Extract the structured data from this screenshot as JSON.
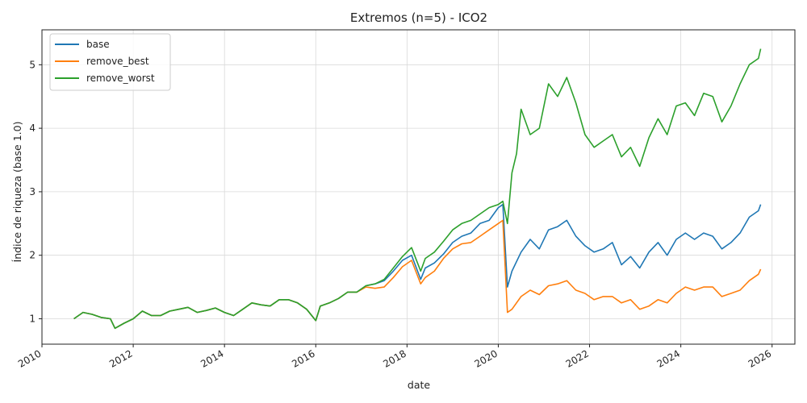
{
  "chart_data": {
    "type": "line",
    "title": "Extremos (n=5) - ICO2",
    "xlabel": "date",
    "ylabel": "Índice de riqueza (base 1.0)",
    "xlim": [
      2010.0,
      2026.5
    ],
    "ylim": [
      0.6,
      5.55
    ],
    "x_ticks": [
      2010,
      2012,
      2014,
      2016,
      2018,
      2020,
      2022,
      2024,
      2026
    ],
    "x_tick_labels": [
      "2010",
      "2012",
      "2014",
      "2016",
      "2018",
      "2020",
      "2022",
      "2024",
      "2026"
    ],
    "y_ticks": [
      1,
      2,
      3,
      4,
      5
    ],
    "y_tick_labels": [
      "1",
      "2",
      "3",
      "4",
      "5"
    ],
    "grid": true,
    "legend_position": "top-left",
    "series": [
      {
        "name": "base",
        "color": "#1f77b4",
        "x": [
          2010.7,
          2010.9,
          2011.1,
          2011.3,
          2011.5,
          2011.6,
          2011.8,
          2012.0,
          2012.2,
          2012.4,
          2012.6,
          2012.8,
          2013.0,
          2013.2,
          2013.4,
          2013.6,
          2013.8,
          2014.0,
          2014.2,
          2014.4,
          2014.6,
          2014.8,
          2015.0,
          2015.2,
          2015.4,
          2015.6,
          2015.8,
          2016.0,
          2016.1,
          2016.3,
          2016.5,
          2016.7,
          2016.9,
          2017.1,
          2017.3,
          2017.5,
          2017.7,
          2017.9,
          2018.1,
          2018.3,
          2018.4,
          2018.6,
          2018.8,
          2019.0,
          2019.2,
          2019.4,
          2019.6,
          2019.8,
          2020.0,
          2020.1,
          2020.2,
          2020.3,
          2020.5,
          2020.7,
          2020.9,
          2021.1,
          2021.3,
          2021.5,
          2021.7,
          2021.9,
          2022.1,
          2022.3,
          2022.5,
          2022.7,
          2022.9,
          2023.1,
          2023.3,
          2023.5,
          2023.7,
          2023.9,
          2024.1,
          2024.3,
          2024.5,
          2024.7,
          2024.9,
          2025.1,
          2025.3,
          2025.5,
          2025.7,
          2025.75
        ],
        "values": [
          1.0,
          1.1,
          1.07,
          1.02,
          1.0,
          0.85,
          0.93,
          1.0,
          1.12,
          1.05,
          1.05,
          1.12,
          1.15,
          1.18,
          1.1,
          1.13,
          1.17,
          1.1,
          1.05,
          1.15,
          1.25,
          1.22,
          1.2,
          1.3,
          1.3,
          1.25,
          1.15,
          0.97,
          1.2,
          1.25,
          1.32,
          1.42,
          1.42,
          1.52,
          1.55,
          1.6,
          1.75,
          1.92,
          2.0,
          1.62,
          1.8,
          1.88,
          2.02,
          2.2,
          2.3,
          2.35,
          2.5,
          2.55,
          2.75,
          2.8,
          1.5,
          1.75,
          2.05,
          2.25,
          2.1,
          2.4,
          2.45,
          2.55,
          2.3,
          2.15,
          2.05,
          2.1,
          2.2,
          1.85,
          1.98,
          1.8,
          2.05,
          2.2,
          2.0,
          2.25,
          2.35,
          2.25,
          2.35,
          2.3,
          2.1,
          2.2,
          2.35,
          2.6,
          2.7,
          2.8
        ]
      },
      {
        "name": "remove_best",
        "color": "#ff7f0e",
        "x": [
          2010.7,
          2010.9,
          2011.1,
          2011.3,
          2011.5,
          2011.6,
          2011.8,
          2012.0,
          2012.2,
          2012.4,
          2012.6,
          2012.8,
          2013.0,
          2013.2,
          2013.4,
          2013.6,
          2013.8,
          2014.0,
          2014.2,
          2014.4,
          2014.6,
          2014.8,
          2015.0,
          2015.2,
          2015.4,
          2015.6,
          2015.8,
          2016.0,
          2016.1,
          2016.3,
          2016.5,
          2016.7,
          2016.9,
          2017.1,
          2017.3,
          2017.5,
          2017.7,
          2017.9,
          2018.1,
          2018.3,
          2018.4,
          2018.6,
          2018.8,
          2019.0,
          2019.2,
          2019.4,
          2019.6,
          2019.8,
          2020.0,
          2020.1,
          2020.2,
          2020.3,
          2020.5,
          2020.7,
          2020.9,
          2021.1,
          2021.3,
          2021.5,
          2021.7,
          2021.9,
          2022.1,
          2022.3,
          2022.5,
          2022.7,
          2022.9,
          2023.1,
          2023.3,
          2023.5,
          2023.7,
          2023.9,
          2024.1,
          2024.3,
          2024.5,
          2024.7,
          2024.9,
          2025.1,
          2025.3,
          2025.5,
          2025.7,
          2025.75
        ],
        "values": [
          1.0,
          1.1,
          1.07,
          1.02,
          1.0,
          0.85,
          0.93,
          1.0,
          1.12,
          1.05,
          1.05,
          1.12,
          1.15,
          1.18,
          1.1,
          1.13,
          1.17,
          1.1,
          1.05,
          1.15,
          1.25,
          1.22,
          1.2,
          1.3,
          1.3,
          1.25,
          1.15,
          0.97,
          1.2,
          1.25,
          1.32,
          1.42,
          1.42,
          1.5,
          1.48,
          1.5,
          1.65,
          1.82,
          1.92,
          1.55,
          1.65,
          1.75,
          1.95,
          2.1,
          2.18,
          2.2,
          2.3,
          2.4,
          2.5,
          2.55,
          1.1,
          1.15,
          1.35,
          1.45,
          1.38,
          1.52,
          1.55,
          1.6,
          1.45,
          1.4,
          1.3,
          1.35,
          1.35,
          1.25,
          1.3,
          1.15,
          1.2,
          1.3,
          1.25,
          1.4,
          1.5,
          1.45,
          1.5,
          1.5,
          1.35,
          1.4,
          1.45,
          1.6,
          1.7,
          1.78
        ]
      },
      {
        "name": "remove_worst",
        "color": "#2ca02c",
        "x": [
          2010.7,
          2010.9,
          2011.1,
          2011.3,
          2011.5,
          2011.6,
          2011.8,
          2012.0,
          2012.2,
          2012.4,
          2012.6,
          2012.8,
          2013.0,
          2013.2,
          2013.4,
          2013.6,
          2013.8,
          2014.0,
          2014.2,
          2014.4,
          2014.6,
          2014.8,
          2015.0,
          2015.2,
          2015.4,
          2015.6,
          2015.8,
          2016.0,
          2016.1,
          2016.3,
          2016.5,
          2016.7,
          2016.9,
          2017.1,
          2017.3,
          2017.5,
          2017.7,
          2017.9,
          2018.1,
          2018.3,
          2018.4,
          2018.6,
          2018.8,
          2019.0,
          2019.2,
          2019.4,
          2019.6,
          2019.8,
          2020.0,
          2020.1,
          2020.2,
          2020.3,
          2020.4,
          2020.5,
          2020.7,
          2020.9,
          2021.1,
          2021.3,
          2021.5,
          2021.7,
          2021.9,
          2022.1,
          2022.3,
          2022.5,
          2022.7,
          2022.9,
          2023.1,
          2023.3,
          2023.5,
          2023.7,
          2023.9,
          2024.1,
          2024.3,
          2024.5,
          2024.7,
          2024.9,
          2025.1,
          2025.3,
          2025.5,
          2025.7,
          2025.75
        ],
        "values": [
          1.0,
          1.1,
          1.07,
          1.02,
          1.0,
          0.85,
          0.93,
          1.0,
          1.12,
          1.05,
          1.05,
          1.12,
          1.15,
          1.18,
          1.1,
          1.13,
          1.17,
          1.1,
          1.05,
          1.15,
          1.25,
          1.22,
          1.2,
          1.3,
          1.3,
          1.25,
          1.15,
          0.97,
          1.2,
          1.25,
          1.32,
          1.42,
          1.42,
          1.52,
          1.55,
          1.62,
          1.8,
          1.98,
          2.12,
          1.75,
          1.95,
          2.05,
          2.22,
          2.4,
          2.5,
          2.55,
          2.65,
          2.75,
          2.8,
          2.85,
          2.5,
          3.3,
          3.6,
          4.3,
          3.9,
          4.0,
          4.7,
          4.5,
          4.8,
          4.4,
          3.9,
          3.7,
          3.8,
          3.9,
          3.55,
          3.7,
          3.4,
          3.85,
          4.15,
          3.9,
          4.35,
          4.4,
          4.2,
          4.55,
          4.5,
          4.1,
          4.35,
          4.7,
          5.0,
          5.1,
          5.25
        ]
      }
    ]
  }
}
